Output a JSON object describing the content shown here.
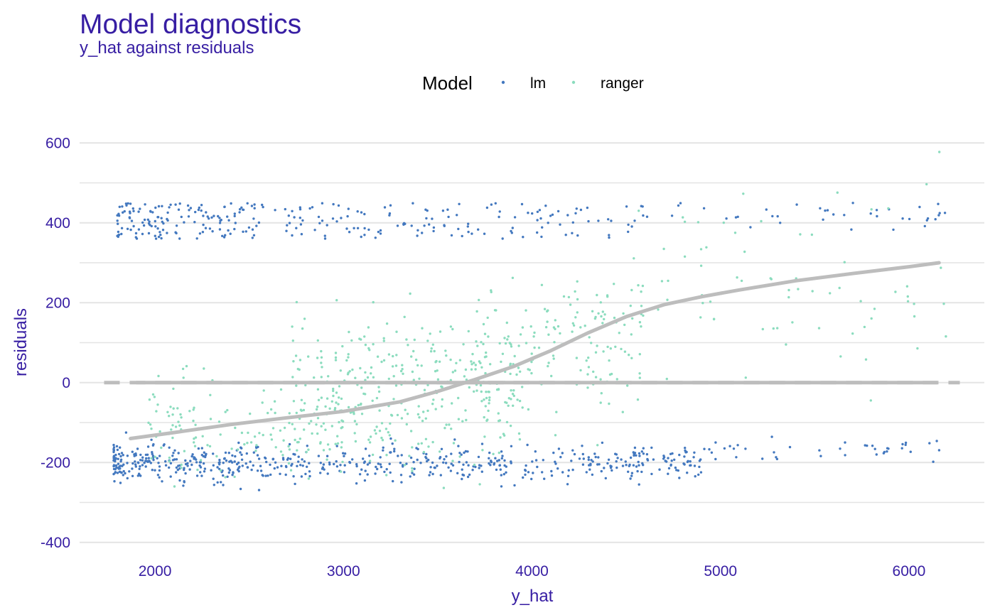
{
  "title": "Model diagnostics",
  "subtitle": "y_hat against residuals",
  "chart_data": {
    "type": "scatter",
    "title": "Model diagnostics",
    "subtitle": "y_hat against residuals",
    "xlabel": "y_hat",
    "ylabel": "residuals",
    "xlim": [
      1600,
      6400
    ],
    "ylim": [
      -420,
      620
    ],
    "xticks": [
      "2000",
      "3000",
      "4000",
      "5000",
      "6000"
    ],
    "yticks": [
      "-400",
      "-200",
      "0",
      "200",
      "400",
      "600"
    ],
    "grid": "horizontal",
    "legend": {
      "title": "Model",
      "position": "top",
      "entries": [
        "lm",
        "ranger"
      ]
    },
    "colors": {
      "lm": "#4378bf",
      "ranger": "#8bdcbe",
      "smooth": "#bdbdbd",
      "reference": "#bdbdbd",
      "text": "#371ea3"
    },
    "reference_line": {
      "y": 0,
      "style": "dashed",
      "x_range": [
        1730,
        6270
      ]
    },
    "smooth_line": {
      "x": [
        1870,
        2100,
        2400,
        2700,
        3000,
        3300,
        3500,
        3700,
        3900,
        4100,
        4300,
        4500,
        4700,
        4900,
        5100,
        5400,
        5700,
        6000,
        6160
      ],
      "y": [
        -140,
        -125,
        -105,
        -88,
        -72,
        -48,
        -22,
        8,
        40,
        80,
        125,
        165,
        195,
        215,
        232,
        255,
        273,
        290,
        300
      ]
    },
    "series": [
      {
        "name": "lm",
        "generator": {
          "clusters": [
            {
              "n": 280,
              "x_min": 1800,
              "x_max": 4600,
              "x_skew": 1.6,
              "y_min": 360,
              "y_max": 450
            },
            {
              "n": 40,
              "x_min": 4400,
              "x_max": 6200,
              "x_skew": 1.0,
              "y_min": 380,
              "y_max": 450
            },
            {
              "n": 600,
              "x_min": 1780,
              "x_max": 4900,
              "x_skew": 1.5,
              "y_mean": -200,
              "y_sd": 22
            },
            {
              "n": 45,
              "x_min": 4800,
              "x_max": 6200,
              "x_skew": 1.0,
              "y_mean": -170,
              "y_sd": 12
            }
          ]
        }
      },
      {
        "name": "ranger",
        "generator": {
          "clusters": [
            {
              "n": 140,
              "x_min": 1950,
              "x_max": 3000,
              "x_skew": 1.0,
              "y_mean": -105,
              "y_sd": 70
            },
            {
              "n": 340,
              "x_min": 2700,
              "x_max": 3950,
              "x_skew": 1.0,
              "y_mean": -25,
              "y_sd": 90
            },
            {
              "n": 160,
              "x_min": 3700,
              "x_max": 4600,
              "x_skew": 1.0,
              "y_mean": 95,
              "y_sd": 95
            },
            {
              "n": 70,
              "x_min": 4500,
              "x_max": 6200,
              "x_skew": 1.0,
              "y_mean": 250,
              "y_sd": 120
            }
          ]
        }
      }
    ]
  }
}
